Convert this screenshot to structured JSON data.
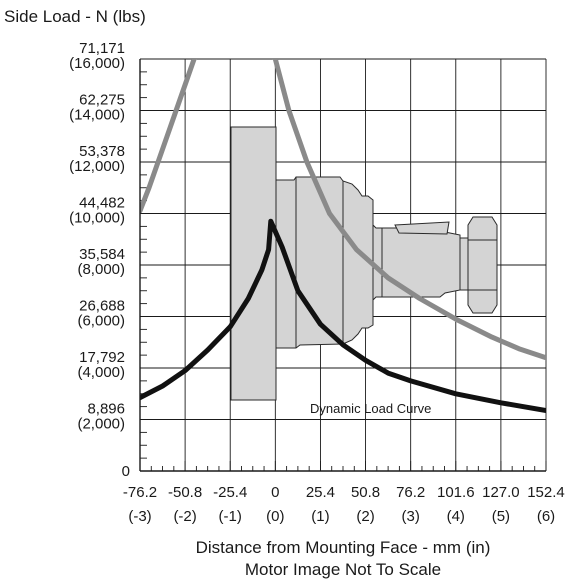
{
  "chart_data": {
    "type": "line",
    "title": "Side Load - N (lbs)",
    "xlabel": "Distance from Mounting Face - mm (in)",
    "footnote": "Motor Image Not To Scale",
    "xlim": [
      -3,
      6
    ],
    "ylim": [
      0,
      16000
    ],
    "grid": true,
    "x_ticks": [
      {
        "value": -3,
        "mm": "-76.2",
        "in": "(-3)"
      },
      {
        "value": -2,
        "mm": "-50.8",
        "in": "(-2)"
      },
      {
        "value": -1,
        "mm": "-25.4",
        "in": "(-1)"
      },
      {
        "value": 0,
        "mm": "0",
        "in": "(0)"
      },
      {
        "value": 1,
        "mm": "25.4",
        "in": "(1)"
      },
      {
        "value": 2,
        "mm": "50.8",
        "in": "(2)"
      },
      {
        "value": 3,
        "mm": "76.2",
        "in": "(3)"
      },
      {
        "value": 4,
        "mm": "101.6",
        "in": "(4)"
      },
      {
        "value": 5,
        "mm": "127.0",
        "in": "(5)"
      },
      {
        "value": 6,
        "mm": "152.4",
        "in": "(6)"
      }
    ],
    "y_ticks": [
      {
        "value": 0,
        "n": "0",
        "lbs": ""
      },
      {
        "value": 2000,
        "n": "8,896",
        "lbs": "(2,000)"
      },
      {
        "value": 4000,
        "n": "17,792",
        "lbs": "(4,000)"
      },
      {
        "value": 6000,
        "n": "26,688",
        "lbs": "(6,000)"
      },
      {
        "value": 8000,
        "n": "35,584",
        "lbs": "(8,000)"
      },
      {
        "value": 10000,
        "n": "44,482",
        "lbs": "(10,000)"
      },
      {
        "value": 12000,
        "n": "53,378",
        "lbs": "(12,000)"
      },
      {
        "value": 14000,
        "n": "62,275",
        "lbs": "(14,000)"
      },
      {
        "value": 16000,
        "n": "71,171",
        "lbs": "(16,000)"
      }
    ],
    "series": [
      {
        "name": "",
        "color": "#8a8a8a",
        "points": [
          [
            -3,
            10100
          ],
          [
            -2.8,
            11000
          ],
          [
            -2.5,
            12500
          ],
          [
            -2.2,
            14000
          ],
          [
            -1.8,
            16000
          ],
          [
            -1.4,
            18200
          ]
        ]
      },
      {
        "name": "",
        "color": "#8a8a8a",
        "points": [
          [
            0,
            16000
          ],
          [
            0.3,
            14000
          ],
          [
            0.7,
            12000
          ],
          [
            1.2,
            10000
          ],
          [
            1.8,
            8600
          ],
          [
            2.5,
            7500
          ],
          [
            3.2,
            6700
          ],
          [
            4.0,
            5900
          ],
          [
            4.8,
            5200
          ],
          [
            5.4,
            4750
          ],
          [
            6.0,
            4400
          ]
        ]
      },
      {
        "name": "",
        "annotation": "Dynamic Load Curve",
        "color": "#111111",
        "points": [
          [
            -3,
            2850
          ],
          [
            -2.5,
            3300
          ],
          [
            -2,
            3900
          ],
          [
            -1.5,
            4700
          ],
          [
            -1,
            5600
          ],
          [
            -0.6,
            6700
          ],
          [
            -0.3,
            7800
          ],
          [
            -0.15,
            8600
          ],
          [
            -0.1,
            9700
          ],
          [
            0.15,
            8700
          ],
          [
            0.5,
            7000
          ],
          [
            1,
            5700
          ],
          [
            1.5,
            4900
          ],
          [
            2,
            4300
          ],
          [
            2.5,
            3800
          ],
          [
            3,
            3500
          ],
          [
            4,
            3000
          ],
          [
            5,
            2650
          ],
          [
            6,
            2350
          ]
        ]
      }
    ]
  },
  "motor_image": {
    "color": "#d4d4d4",
    "stroke": "#2a2a2a"
  }
}
